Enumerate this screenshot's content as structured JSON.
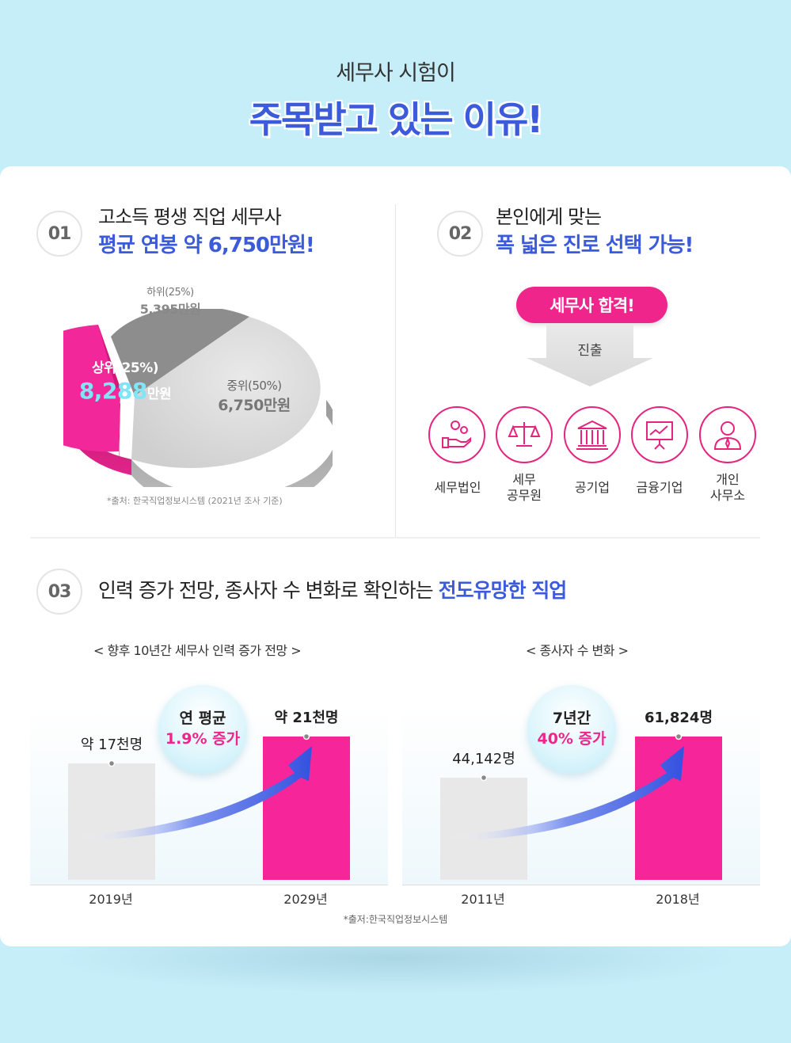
{
  "hero": {
    "subtitle": "세무사 시험이",
    "title": "주목받고 있는 이유!"
  },
  "section1": {
    "num": "01",
    "line1": "고소득 평생 직업 세무사",
    "line2": "평균 연봉 약 6,750만원!",
    "pie": {
      "low_label": "하위(25%)",
      "low_value": "5,395만원",
      "top_label": "상위(25%)",
      "top_value_num": "8,288",
      "top_value_unit": "만원",
      "mid_label": "중위(50%)",
      "mid_value": "6,750만원"
    },
    "source": "*출처: 한국직업정보시스템 (2021년 조사 기준)"
  },
  "section2": {
    "num": "02",
    "line1": "본인에게 맞는",
    "line2": "폭 넓은 진로 선택 가능!",
    "badge": "세무사 합격!",
    "arrow_label": "진출",
    "careers": [
      {
        "icon": "hand-coins-icon",
        "label": "세무법인"
      },
      {
        "icon": "scales-icon",
        "label": "세무\n공무원"
      },
      {
        "icon": "government-building-icon",
        "label": "공기업"
      },
      {
        "icon": "chart-board-icon",
        "label": "금융기업"
      },
      {
        "icon": "person-icon",
        "label": "개인\n사무소"
      }
    ]
  },
  "section3": {
    "num": "03",
    "title_plain": "인력 증가 전망, 종사자 수 변화로 확인하는 ",
    "title_hl": "전도유망한 직업",
    "source": "*출저:한국직업정보시스템"
  },
  "chart_data": [
    {
      "type": "bar",
      "title": "< 향후 10년간 세무사 인력 증가 전망 >",
      "categories": [
        "2019년",
        "2029년"
      ],
      "values": [
        17,
        21
      ],
      "value_labels": [
        "약 17천명",
        "약 21천명"
      ],
      "ylim": [
        0,
        21
      ],
      "bubble": [
        "연 평균",
        "1.9% 증가"
      ],
      "colors": [
        "#e8e8e8",
        "#f7259a"
      ]
    },
    {
      "type": "bar",
      "title": "< 종사자 수 변화 >",
      "categories": [
        "2011년",
        "2018년"
      ],
      "values": [
        44142,
        61824
      ],
      "value_labels": [
        "44,142명",
        "61,824명"
      ],
      "ylim": [
        0,
        61824
      ],
      "bubble": [
        "7년간",
        "40% 증가"
      ],
      "colors": [
        "#e8e8e8",
        "#f7259a"
      ]
    }
  ]
}
